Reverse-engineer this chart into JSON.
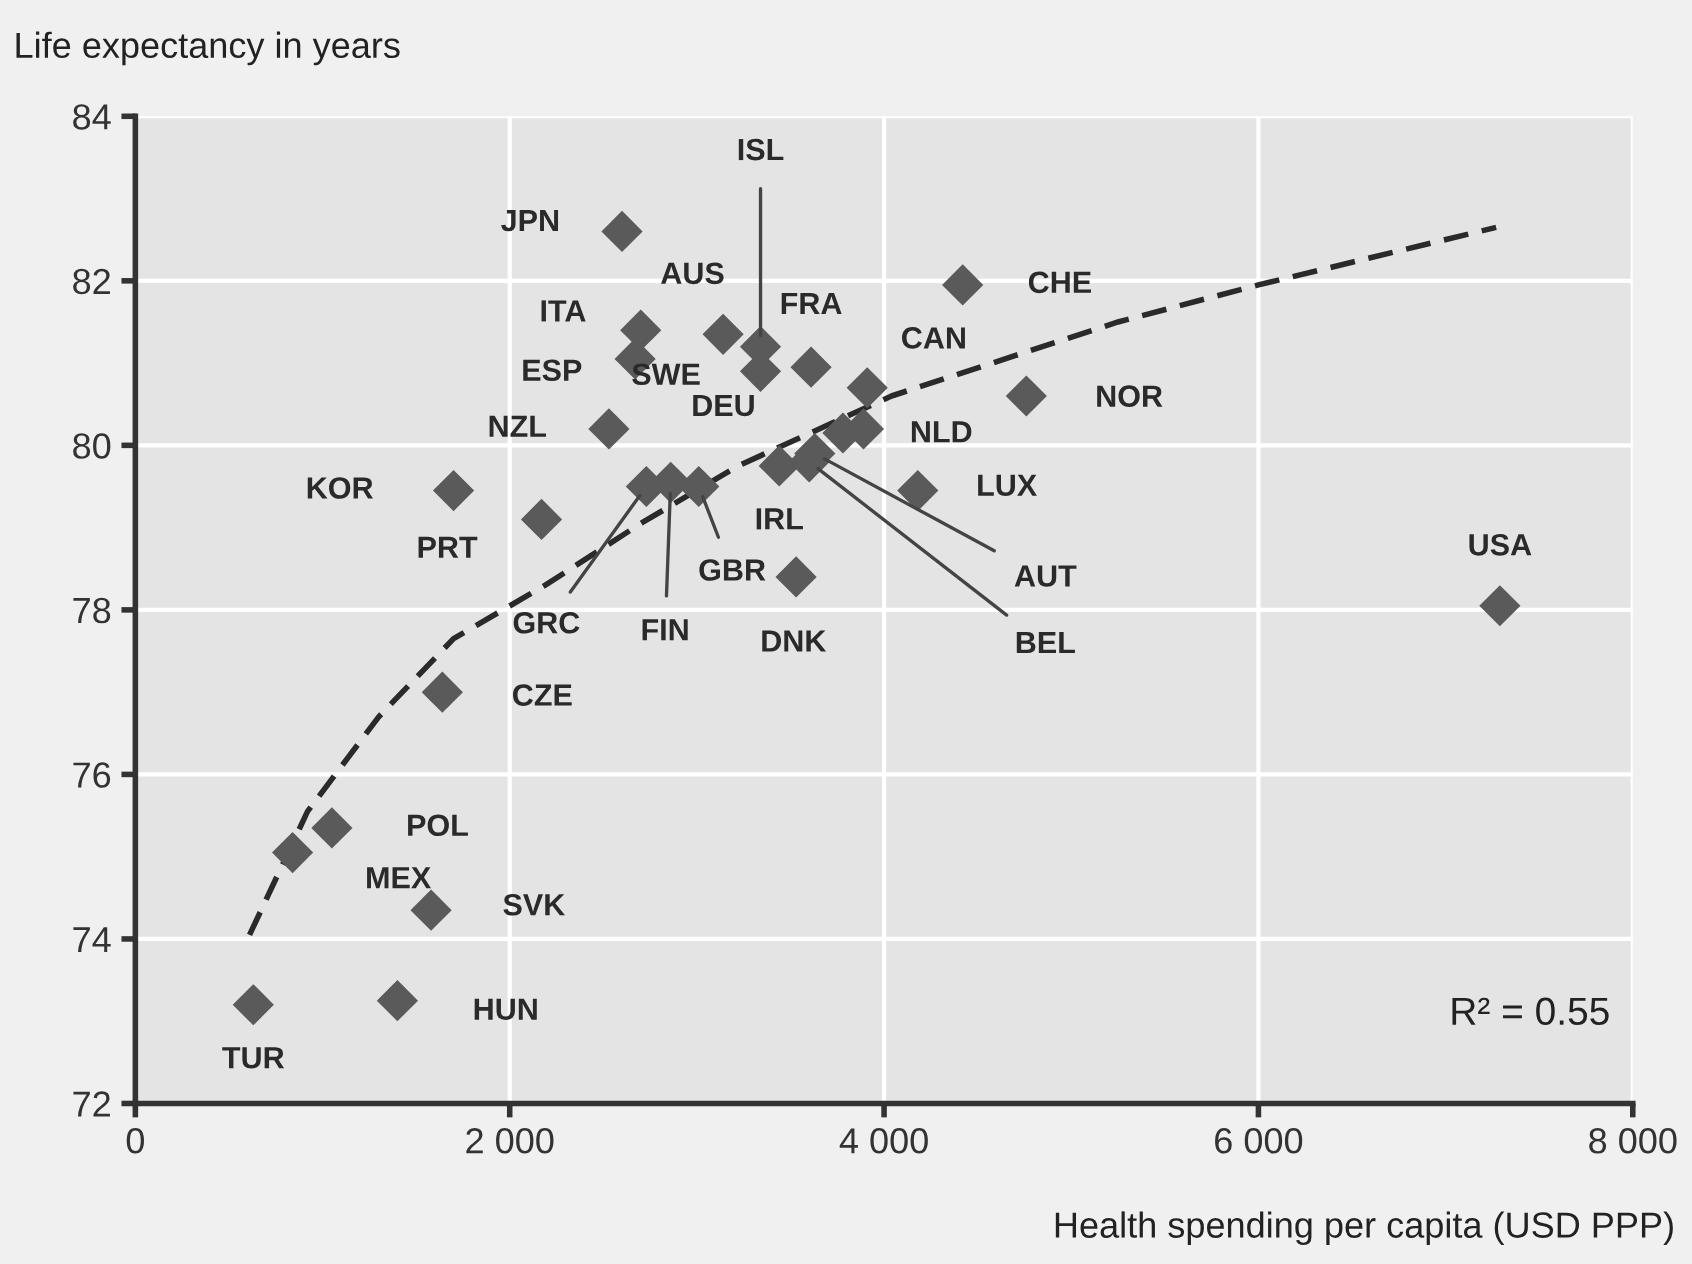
{
  "chart_data": {
    "type": "scatter",
    "ylabel": "Life expectancy in years",
    "xlabel": "Health spending per capita (USD PPP)",
    "xlim": [
      0,
      8000
    ],
    "ylim": [
      72,
      84
    ],
    "xticks": [
      0,
      {
        "value": 2000,
        "label": "2 000"
      },
      {
        "value": 4000,
        "label": "4 000"
      },
      {
        "value": 6000,
        "label": "6 000"
      },
      {
        "value": 8000,
        "label": "8 000"
      }
    ],
    "yticks": [
      72,
      74,
      76,
      78,
      80,
      82,
      84
    ],
    "grid": true,
    "legend": false,
    "series": [
      {
        "marker": "diamond",
        "color": "#5a5a5a",
        "x": [
          2600,
          3340,
          3140,
          3610,
          2700,
          2670,
          3340,
          2530,
          3910,
          4420,
          4760,
          3780,
          3890,
          3440,
          4180,
          3630,
          3600,
          2730,
          2860,
          3010,
          1700,
          2170,
          3530,
          7290,
          1640,
          1050,
          840,
          1580,
          1400,
          630
        ],
        "values": [
          82.6,
          81.2,
          81.35,
          80.95,
          81.4,
          81.05,
          80.9,
          80.2,
          80.7,
          81.95,
          80.6,
          80.15,
          80.2,
          79.75,
          79.45,
          79.9,
          79.8,
          79.5,
          79.55,
          79.5,
          79.45,
          79.1,
          78.4,
          78.05,
          77.0,
          75.35,
          75.05,
          74.35,
          73.25,
          73.2
        ]
      },
      {
        "type": "line",
        "marker": "none",
        "line_style": "dashed",
        "color": "#2a2a2a",
        "x": [
          610,
          920,
          1300,
          1700,
          2190,
          2700,
          3220,
          4040,
          5250,
          6000,
          7270
        ],
        "values": [
          74.05,
          75.55,
          76.7,
          77.65,
          78.3,
          79.05,
          79.75,
          80.6,
          81.5,
          81.95,
          82.65
        ]
      }
    ],
    "annotations": [
      {
        "text": "JPN",
        "x": 2600,
        "y": 82.6
      },
      {
        "text": "ISL",
        "x": 3340,
        "y": 81.2
      },
      {
        "text": "AUS",
        "x": 3140,
        "y": 81.35
      },
      {
        "text": "FRA",
        "x": 3610,
        "y": 80.95
      },
      {
        "text": "ITA",
        "x": 2700,
        "y": 81.4
      },
      {
        "text": "ESP",
        "x": 2670,
        "y": 81.05
      },
      {
        "text": "SWE",
        "x": 3340,
        "y": 80.9
      },
      {
        "text": "NZL",
        "x": 2530,
        "y": 80.2
      },
      {
        "text": "CAN",
        "x": 3910,
        "y": 80.7
      },
      {
        "text": "CHE",
        "x": 4420,
        "y": 81.95
      },
      {
        "text": "NOR",
        "x": 4760,
        "y": 80.6
      },
      {
        "text": "DEU",
        "x": 3780,
        "y": 80.15
      },
      {
        "text": "NLD",
        "x": 3890,
        "y": 80.2
      },
      {
        "text": "IRL",
        "x": 3440,
        "y": 79.75
      },
      {
        "text": "LUX",
        "x": 4180,
        "y": 79.45
      },
      {
        "text": "AUT",
        "x": 3630,
        "y": 79.9
      },
      {
        "text": "BEL",
        "x": 3600,
        "y": 79.8
      },
      {
        "text": "GRC",
        "x": 2730,
        "y": 79.5
      },
      {
        "text": "FIN",
        "x": 2860,
        "y": 79.55
      },
      {
        "text": "GBR",
        "x": 3010,
        "y": 79.5
      },
      {
        "text": "KOR",
        "x": 1700,
        "y": 79.45
      },
      {
        "text": "PRT",
        "x": 2170,
        "y": 79.1
      },
      {
        "text": "DNK",
        "x": 3530,
        "y": 78.4
      },
      {
        "text": "USA",
        "x": 7290,
        "y": 78.05
      },
      {
        "text": "CZE",
        "x": 1640,
        "y": 77.0
      },
      {
        "text": "POL",
        "x": 1050,
        "y": 75.35
      },
      {
        "text": "MEX",
        "x": 840,
        "y": 75.05
      },
      {
        "text": "SVK",
        "x": 1580,
        "y": 74.35
      },
      {
        "text": "HUN",
        "x": 1400,
        "y": 73.25
      },
      {
        "text": "TUR",
        "x": 630,
        "y": 73.2
      },
      "R² = 0.55"
    ]
  }
}
